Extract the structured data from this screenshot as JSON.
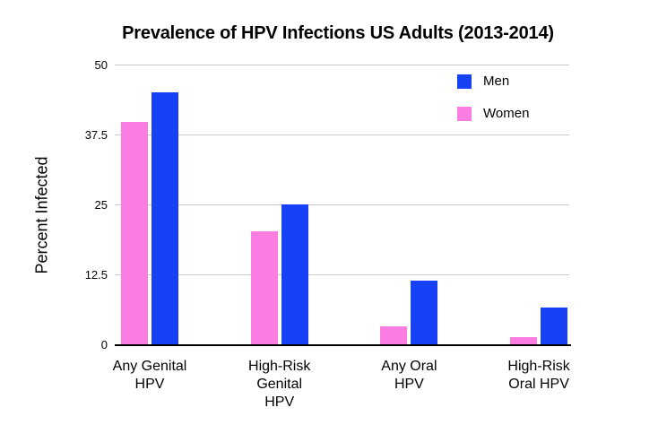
{
  "chart_data": {
    "type": "bar",
    "title": "Prevalence of HPV Infections US Adults (2013-2014)",
    "ylabel": "Percent Infected",
    "xlabel": "",
    "categories": [
      "Any Genital\nHPV",
      "High-Risk\nGenital\nHPV",
      "Any Oral\nHPV",
      "High-Risk\nOral HPV"
    ],
    "series": [
      {
        "name": "Men",
        "color": "#1641F5",
        "values": [
          45.2,
          25.1,
          11.5,
          6.8
        ]
      },
      {
        "name": "Women",
        "color": "#FB7DE2",
        "values": [
          39.9,
          20.4,
          3.3,
          1.4
        ]
      }
    ],
    "bar_draw_order": [
      "Women",
      "Men"
    ],
    "ylim": [
      0,
      50
    ],
    "yticks": [
      0,
      12.5,
      25,
      37.5,
      50
    ],
    "grid": true,
    "legend_position": "top-right",
    "colors": {
      "gridline": "#c8c8c8",
      "axis": "#000000",
      "background": "#ffffff",
      "text": "#000000"
    }
  }
}
